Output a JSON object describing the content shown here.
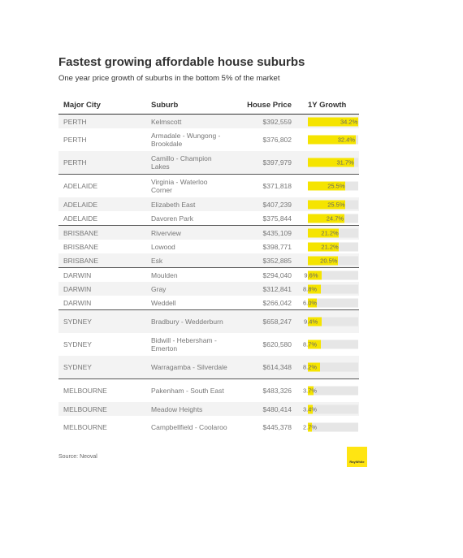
{
  "header": {
    "title": "Fastest growing affordable house suburbs",
    "subtitle": "One year price growth of suburbs in the bottom 5% of the market"
  },
  "table": {
    "columns": [
      "Major City",
      "Suburb",
      "House Price",
      "1Y Growth"
    ],
    "rows": [
      {
        "city": "PERTH",
        "suburb": "Kelmscott",
        "price": "$392,559",
        "growth": {
          "value": 34.2,
          "label": "34.2%"
        }
      },
      {
        "city": "PERTH",
        "suburb": "Armadale - Wungong - Brookdale",
        "price": "$376,802",
        "growth": {
          "value": 32.4,
          "label": "32.4%"
        }
      },
      {
        "city": "PERTH",
        "suburb": "Camillo - Champion Lakes",
        "price": "$397,979",
        "growth": {
          "value": 31.7,
          "label": "31.7%"
        }
      },
      {
        "city": "ADELAIDE",
        "suburb": "Virginia - Waterloo Corner",
        "price": "$371,818",
        "growth": {
          "value": 25.5,
          "label": "25.5%"
        }
      },
      {
        "city": "ADELAIDE",
        "suburb": "Elizabeth East",
        "price": "$407,239",
        "growth": {
          "value": 25.5,
          "label": "25.5%"
        }
      },
      {
        "city": "ADELAIDE",
        "suburb": "Davoren Park",
        "price": "$375,844",
        "growth": {
          "value": 24.7,
          "label": "24.7%"
        }
      },
      {
        "city": "BRISBANE",
        "suburb": "Riverview",
        "price": "$435,109",
        "growth": {
          "value": 21.2,
          "label": "21.2%"
        }
      },
      {
        "city": "BRISBANE",
        "suburb": "Lowood",
        "price": "$398,771",
        "growth": {
          "value": 21.2,
          "label": "21.2%"
        }
      },
      {
        "city": "BRISBANE",
        "suburb": "Esk",
        "price": "$352,885",
        "growth": {
          "value": 20.5,
          "label": "20.5%"
        }
      },
      {
        "city": "DARWIN",
        "suburb": "Moulden",
        "price": "$294,040",
        "growth": {
          "value": 9.6,
          "label": "9.6%"
        }
      },
      {
        "city": "DARWIN",
        "suburb": "Gray",
        "price": "$312,841",
        "growth": {
          "value": 8.8,
          "label": "8.8%"
        }
      },
      {
        "city": "DARWIN",
        "suburb": "Weddell",
        "price": "$266,042",
        "growth": {
          "value": 6.0,
          "label": "6.0%"
        }
      },
      {
        "city": "SYDNEY",
        "suburb": "Bradbury - Wedderburn",
        "price": "$658,247",
        "growth": {
          "value": 9.4,
          "label": "9.4%"
        }
      },
      {
        "city": "SYDNEY",
        "suburb": "Bidwill - Hebersham - Emerton",
        "price": "$620,580",
        "growth": {
          "value": 8.7,
          "label": "8.7%"
        }
      },
      {
        "city": "SYDNEY",
        "suburb": "Warragamba - Silverdale",
        "price": "$614,348",
        "growth": {
          "value": 8.2,
          "label": "8.2%"
        }
      },
      {
        "city": "MELBOURNE",
        "suburb": "Pakenham - South East",
        "price": "$483,326",
        "growth": {
          "value": 3.7,
          "label": "3.7%"
        }
      },
      {
        "city": "MELBOURNE",
        "suburb": "Meadow Heights",
        "price": "$480,414",
        "growth": {
          "value": 3.4,
          "label": "3.4%"
        }
      },
      {
        "city": "MELBOURNE",
        "suburb": "Campbellfield - Coolaroo",
        "price": "$445,378",
        "growth": {
          "value": 2.7,
          "label": "2.7%"
        }
      }
    ]
  },
  "footer": {
    "source": "Source: Neoval",
    "logo": "RayWhite"
  }
}
